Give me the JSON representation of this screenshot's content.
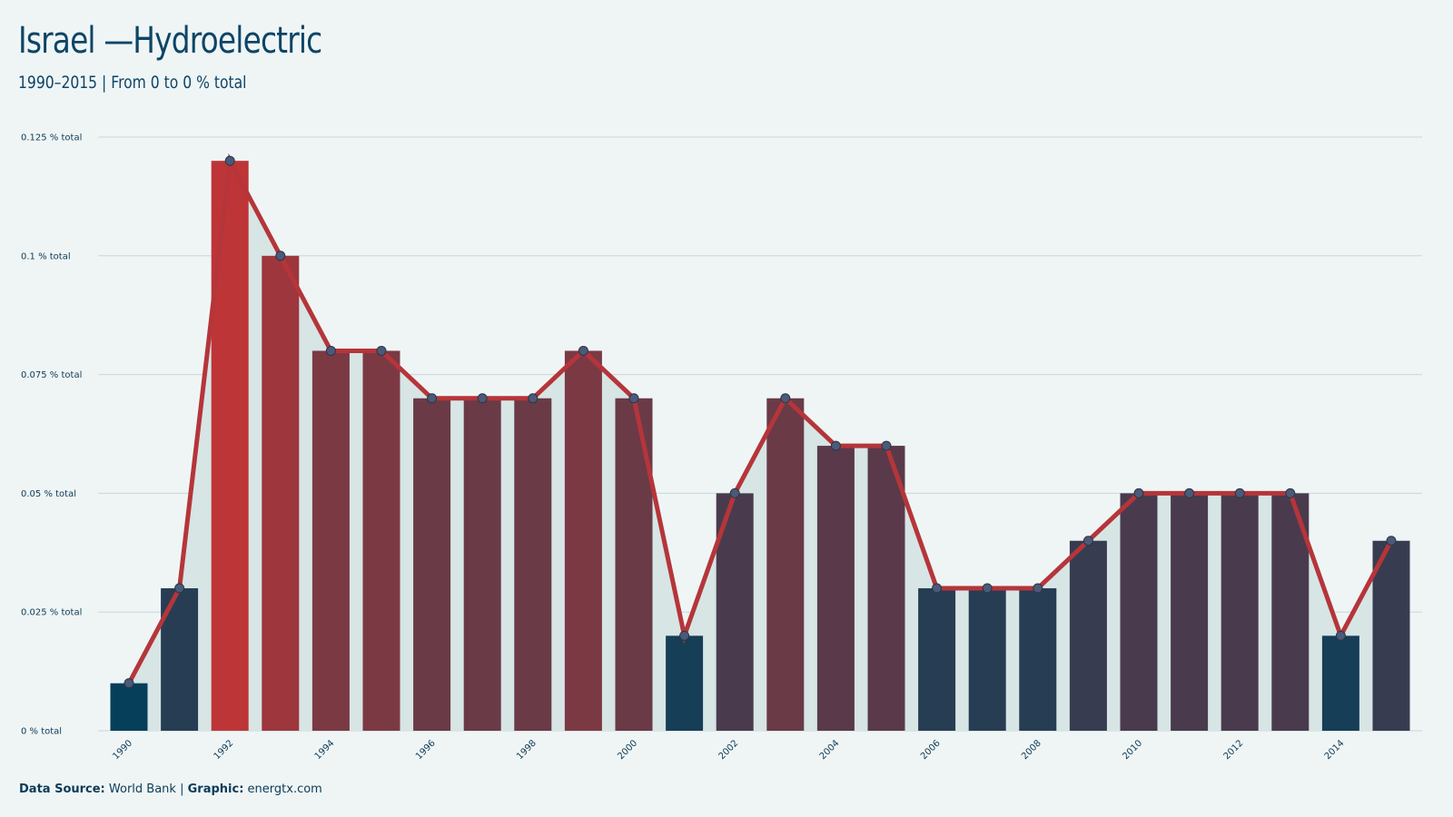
{
  "header": {
    "title": "Israel —Hydroelectric",
    "subtitle": "1990–2015 | From 0 to 0 % total"
  },
  "footer": {
    "source_label": "Data Source:",
    "source_value": "World Bank",
    "separator": "|",
    "graphic_label": "Graphic:",
    "graphic_value": "energtx.com"
  },
  "colors": {
    "background": "#eff5f5",
    "line": "#b5353a",
    "area": "#d7e5e5",
    "low": "#063f5a",
    "high": "#be3537",
    "grid": "#c9d6d8",
    "marker": "#4a5a78"
  },
  "chart_data": {
    "type": "bar",
    "overlay": "line-with-area",
    "x": [
      1990,
      1991,
      1992,
      1993,
      1994,
      1995,
      1996,
      1997,
      1998,
      1999,
      2000,
      2001,
      2002,
      2003,
      2004,
      2005,
      2006,
      2007,
      2008,
      2009,
      2010,
      2011,
      2012,
      2013,
      2014,
      2015
    ],
    "values": [
      0.01,
      0.03,
      0.12,
      0.1,
      0.08,
      0.08,
      0.07,
      0.07,
      0.07,
      0.08,
      0.07,
      0.02,
      0.05,
      0.07,
      0.06,
      0.06,
      0.03,
      0.03,
      0.03,
      0.04,
      0.05,
      0.05,
      0.05,
      0.05,
      0.02,
      0.04
    ],
    "x_tick_labels": [
      "1990",
      "1992",
      "1994",
      "1996",
      "1998",
      "2000",
      "2002",
      "2004",
      "2006",
      "2008",
      "2010",
      "2012",
      "2014"
    ],
    "y_ticks": [
      0,
      0.025,
      0.05,
      0.075,
      0.1,
      0.125
    ],
    "y_tick_labels": [
      "0 % total",
      "0.025 % total",
      "0.05 % total",
      "0.075 % total",
      "0.1 % total",
      "0.125 % total"
    ],
    "ylim": [
      0,
      0.125
    ],
    "grid": true,
    "title": "Israel —Hydroelectric",
    "subtitle": "1990–2015 | From 0 to 0 % total",
    "xlabel": "",
    "ylabel": ""
  }
}
